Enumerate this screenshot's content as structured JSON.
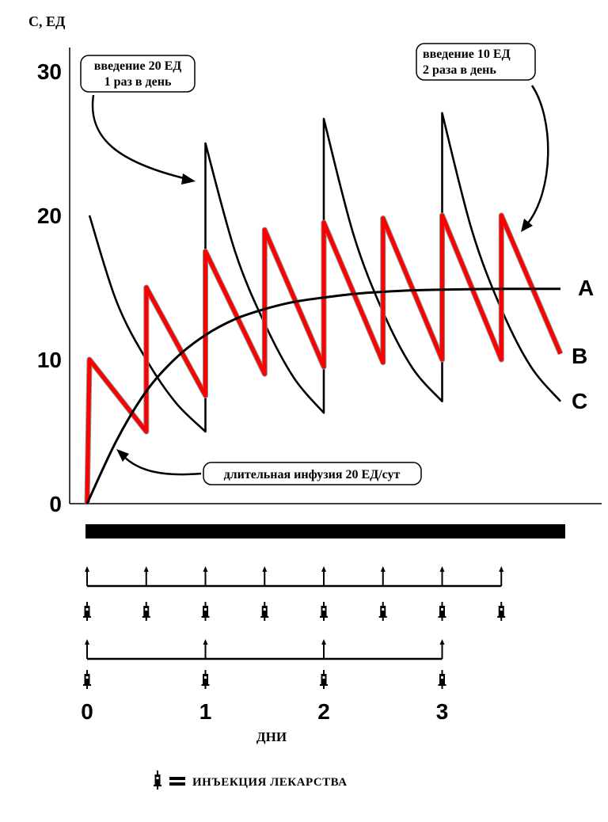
{
  "chart_data": {
    "type": "line",
    "ylabel": "С, ЕД",
    "xlabel": "ДНИ",
    "ylim": [
      0,
      32
    ],
    "xlim": [
      0,
      4
    ],
    "y_ticks": [
      "0",
      "10",
      "20",
      "30"
    ],
    "x_ticks": [
      "0",
      "1",
      "2",
      "3"
    ],
    "grid": false,
    "series": [
      {
        "name": "A",
        "color": "#000000",
        "points": [
          [
            0,
            0
          ],
          [
            0.25,
            4.4
          ],
          [
            0.5,
            7.8
          ],
          [
            0.75,
            10.1
          ],
          [
            1,
            11.7
          ],
          [
            1.25,
            12.8
          ],
          [
            1.5,
            13.5
          ],
          [
            1.75,
            14
          ],
          [
            2,
            14.3
          ],
          [
            2.25,
            14.55
          ],
          [
            2.5,
            14.7
          ],
          [
            2.75,
            14.8
          ],
          [
            3,
            14.85
          ],
          [
            3.5,
            14.9
          ],
          [
            4,
            14.9
          ]
        ]
      },
      {
        "name": "B",
        "color": "#ff0000",
        "points": [
          [
            0,
            0
          ],
          [
            0.02,
            10
          ],
          [
            0.5,
            5
          ],
          [
            0.5,
            15
          ],
          [
            1,
            7.5
          ],
          [
            1,
            17.5
          ],
          [
            1.5,
            9
          ],
          [
            1.5,
            19
          ],
          [
            2,
            9.5
          ],
          [
            2,
            19.5
          ],
          [
            2.5,
            9.8
          ],
          [
            2.5,
            19.8
          ],
          [
            3,
            10
          ],
          [
            3,
            20
          ],
          [
            3.5,
            10
          ],
          [
            3.5,
            20
          ],
          [
            4,
            10.4
          ]
        ]
      },
      {
        "name": "C",
        "color": "#000000",
        "points": [
          [
            0,
            0
          ],
          [
            0.02,
            20
          ],
          [
            0.25,
            14
          ],
          [
            0.5,
            10
          ],
          [
            0.75,
            7
          ],
          [
            1,
            5
          ],
          [
            1,
            25
          ],
          [
            1.25,
            17.5
          ],
          [
            1.5,
            12.5
          ],
          [
            1.75,
            8.7
          ],
          [
            2,
            6.3
          ],
          [
            2,
            26.7
          ],
          [
            2.25,
            18.7
          ],
          [
            2.5,
            13.3
          ],
          [
            2.75,
            9.4
          ],
          [
            3,
            7.1
          ],
          [
            3,
            27.1
          ],
          [
            3.25,
            19
          ],
          [
            3.5,
            13.5
          ],
          [
            3.75,
            9.5
          ],
          [
            4,
            7.1
          ]
        ]
      }
    ],
    "annotations": {
      "b1": "введение 20 ЕД",
      "b2": "1 раз в день",
      "t1": "введение 10 ЕД",
      "t2": "2 раза в день",
      "infusion": "длительная инфузия 20 ЕД/сут"
    },
    "infusion_bar": {
      "from": 0,
      "to": 4
    },
    "injections": {
      "twice_daily": [
        0,
        0.5,
        1,
        1.5,
        2,
        2.5,
        3,
        3.5
      ],
      "once_daily": [
        0,
        1,
        2,
        3
      ]
    },
    "legend": {
      "symbol": "syringe-icon",
      "text": "ИНЪЕКЦИЯ  ЛЕКАРСТВА"
    }
  }
}
